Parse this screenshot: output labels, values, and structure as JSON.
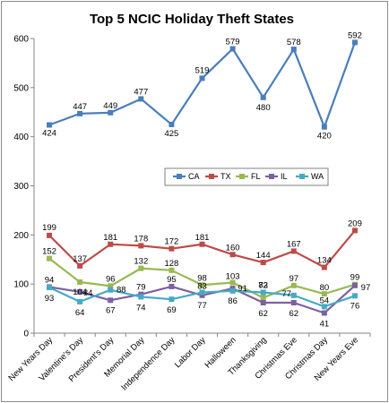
{
  "chart_data": {
    "type": "line",
    "title": "Top 5 NCIC Holiday Theft States",
    "xlabel": "",
    "ylabel": "",
    "ylim": [
      0,
      600
    ],
    "yticks": [
      0,
      100,
      200,
      300,
      400,
      500,
      600
    ],
    "grid": false,
    "legend_position": "middle-right",
    "categories": [
      "New Years  Day",
      "Valentine's Day",
      "President's Day",
      "Memorial Day",
      "Independence Day",
      "Labor Day",
      "Halloween",
      "Thanksgiving",
      "Christmas Eve",
      "Christmas Day",
      "New Years  Eve"
    ],
    "series": [
      {
        "name": "CA",
        "color": "#4a7ebb",
        "values": [
          424,
          447,
          449,
          477,
          425,
          519,
          579,
          480,
          578,
          420,
          592
        ]
      },
      {
        "name": "TX",
        "color": "#be4b48",
        "values": [
          199,
          137,
          181,
          178,
          172,
          181,
          160,
          144,
          167,
          134,
          209
        ]
      },
      {
        "name": "FL",
        "color": "#98b954",
        "values": [
          152,
          104,
          96,
          132,
          128,
          98,
          103,
          72,
          97,
          80,
          99
        ]
      },
      {
        "name": "IL",
        "color": "#7d60a0",
        "values": [
          94,
          84,
          67,
          79,
          95,
          77,
          91,
          62,
          62,
          41,
          97
        ]
      },
      {
        "name": "WA",
        "color": "#46aac5",
        "values": [
          93,
          64,
          88,
          74,
          69,
          83,
          86,
          83,
          77,
          54,
          76
        ]
      }
    ],
    "data_labels": [
      {
        "text": "424"
      },
      {
        "text": "447"
      },
      {
        "text": "449"
      },
      {
        "text": "477"
      },
      {
        "text": "425"
      },
      {
        "text": "519"
      },
      {
        "text": "579"
      },
      {
        "text": "480"
      },
      {
        "text": "578"
      },
      {
        "text": "420"
      },
      {
        "text": "592"
      },
      {
        "text": "199"
      },
      {
        "text": "137"
      },
      {
        "text": "181"
      },
      {
        "text": "178"
      },
      {
        "text": "172"
      },
      {
        "text": "181"
      },
      {
        "text": "160"
      },
      {
        "text": "144"
      },
      {
        "text": "167"
      },
      {
        "text": "134"
      },
      {
        "text": "209"
      },
      {
        "text": "152"
      },
      {
        "text": "104"
      },
      {
        "text": "96"
      },
      {
        "text": "132"
      },
      {
        "text": "128"
      },
      {
        "text": "98"
      },
      {
        "text": "103"
      },
      {
        "text": "97"
      },
      {
        "text": "80"
      },
      {
        "text": "99"
      },
      {
        "text": "94"
      },
      {
        "text": "84"
      },
      {
        "text": "67"
      },
      {
        "text": "79"
      },
      {
        "text": "95"
      },
      {
        "text": "77"
      },
      {
        "text": "91"
      },
      {
        "text": "62"
      },
      {
        "text": "62"
      },
      {
        "text": "41"
      },
      {
        "text": "97"
      },
      {
        "text": "93"
      },
      {
        "text": "64"
      },
      {
        "text": "88"
      },
      {
        "text": "74"
      },
      {
        "text": "69"
      },
      {
        "text": "83"
      },
      {
        "text": "86"
      },
      {
        "text": "83"
      },
      {
        "text": "72"
      },
      {
        "text": "77"
      },
      {
        "text": "54"
      },
      {
        "text": "76"
      }
    ]
  }
}
